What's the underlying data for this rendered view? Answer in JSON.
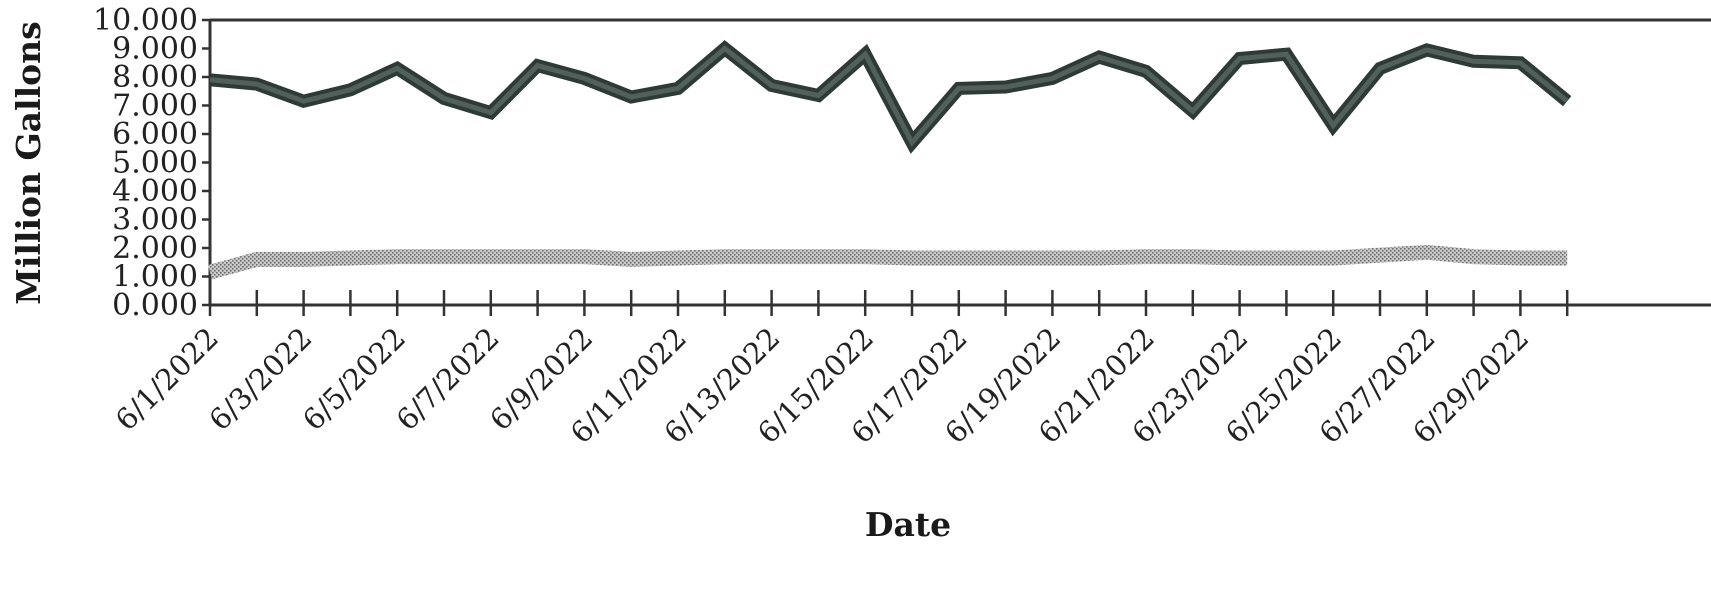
{
  "chart_data": {
    "type": "line",
    "title": "",
    "xlabel": "Date",
    "ylabel": "Million Gallons",
    "ylim": [
      0,
      10
    ],
    "yticks": [
      "0.000",
      "1.000",
      "2.000",
      "3.000",
      "4.000",
      "5.000",
      "6.000",
      "7.000",
      "8.000",
      "9.000",
      "10.000"
    ],
    "xtick_labels": [
      "6/1/2022",
      "6/3/2022",
      "6/5/2022",
      "6/7/2022",
      "6/9/2022",
      "6/11/2022",
      "6/13/2022",
      "6/15/2022",
      "6/17/2022",
      "6/19/2022",
      "6/21/2022",
      "6/23/2022",
      "6/25/2022",
      "6/27/2022",
      "6/29/2022"
    ],
    "x": [
      "6/1/2022",
      "6/2/2022",
      "6/3/2022",
      "6/4/2022",
      "6/5/2022",
      "6/6/2022",
      "6/7/2022",
      "6/8/2022",
      "6/9/2022",
      "6/10/2022",
      "6/11/2022",
      "6/12/2022",
      "6/13/2022",
      "6/14/2022",
      "6/15/2022",
      "6/16/2022",
      "6/17/2022",
      "6/18/2022",
      "6/19/2022",
      "6/20/2022",
      "6/21/2022",
      "6/22/2022",
      "6/23/2022",
      "6/24/2022",
      "6/25/2022",
      "6/26/2022",
      "6/27/2022",
      "6/28/2022",
      "6/29/2022",
      "6/30/2022"
    ],
    "series": [
      {
        "color": "#2e3a35",
        "style": "solid",
        "values": [
          7.9,
          7.75,
          7.15,
          7.55,
          8.3,
          7.25,
          6.75,
          8.4,
          7.95,
          7.3,
          7.6,
          9.0,
          7.7,
          7.35,
          8.8,
          5.7,
          7.6,
          7.65,
          7.95,
          8.7,
          8.2,
          6.8,
          8.65,
          8.8,
          6.3,
          8.3,
          8.95,
          8.55,
          8.5,
          7.15
        ]
      },
      {
        "color": "#9a9a9a",
        "style": "stippled",
        "values": [
          1.15,
          1.6,
          1.6,
          1.65,
          1.7,
          1.7,
          1.7,
          1.7,
          1.7,
          1.6,
          1.65,
          1.7,
          1.7,
          1.7,
          1.7,
          1.65,
          1.65,
          1.65,
          1.65,
          1.65,
          1.7,
          1.7,
          1.65,
          1.65,
          1.65,
          1.75,
          1.85,
          1.7,
          1.65,
          1.65
        ]
      }
    ],
    "grid": false,
    "legend": "none"
  }
}
